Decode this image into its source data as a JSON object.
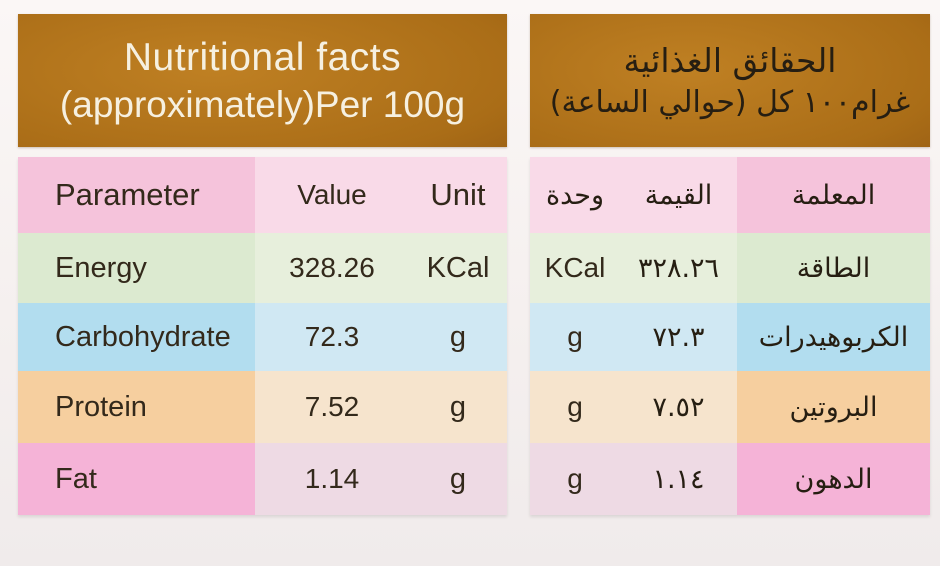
{
  "english_table": {
    "title_line1": "Nutritional facts",
    "title_line2": "(approximately)Per 100g",
    "columns": {
      "parameter": "Parameter",
      "value": "Value",
      "unit": "Unit"
    },
    "rows": [
      {
        "parameter": "Energy",
        "value": "328.26",
        "unit": "KCal"
      },
      {
        "parameter": "Carbohydrate",
        "value": "72.3",
        "unit": "g"
      },
      {
        "parameter": "Protein",
        "value": "7.52",
        "unit": "g"
      },
      {
        "parameter": "Fat",
        "value": "1.14",
        "unit": "g"
      }
    ]
  },
  "arabic_table": {
    "title_line1": "الحقائق الغذائية",
    "title_line2": "غرام١٠٠ كل (حوالي الساعة)",
    "columns": {
      "parameter": "المعلمة",
      "value": "القيمة",
      "unit": "وحدة"
    },
    "rows": [
      {
        "parameter": "الطاقة",
        "value": "٣٢٨.٢٦",
        "unit": "KCal"
      },
      {
        "parameter": "الكربوهيدرات",
        "value": "٧٢.٣",
        "unit": "g"
      },
      {
        "parameter": "البروتين",
        "value": "٧.٥٢",
        "unit": "g"
      },
      {
        "parameter": "الدهون",
        "value": "١.١٤",
        "unit": "g"
      }
    ]
  },
  "colors": {
    "header_brown_light": "#bf8023",
    "header_brown_dark": "#7d460e",
    "header_text": "#f6f0e0",
    "row_header_pink": "#f5c3db",
    "row_energy_green": "#dcead0",
    "row_carbohydrate_blue": "#b2ddef",
    "row_protein_peach": "#f6cf9f",
    "row_fat_pink": "#f5b3d7",
    "table_text": "#33291b",
    "page_background": "#f5f0ef"
  }
}
